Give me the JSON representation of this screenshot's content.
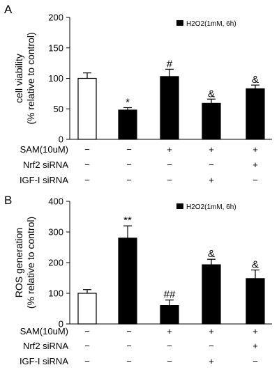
{
  "chart_data": [
    {
      "type": "bar",
      "panel": "A",
      "ylabel_line1": "cell viability",
      "ylabel_line2": "(% relative to control)",
      "ylim": [
        0,
        200
      ],
      "yticks": [
        "0",
        "50",
        "100",
        "150",
        "200"
      ],
      "legend": {
        "label": "H2O2(1mM, 6h)",
        "color": "#000000",
        "position": "top-right"
      },
      "bars": [
        {
          "value": 100,
          "error": 9,
          "fill": "#ffffff",
          "annotation": ""
        },
        {
          "value": 48,
          "error": 4,
          "fill": "#000000",
          "annotation": "*"
        },
        {
          "value": 103,
          "error": 12,
          "fill": "#000000",
          "annotation": "#"
        },
        {
          "value": 59,
          "error": 7,
          "fill": "#000000",
          "annotation": "&"
        },
        {
          "value": 83,
          "error": 6,
          "fill": "#000000",
          "annotation": "&"
        }
      ],
      "conditions": [
        {
          "label": "SAM(10uM)",
          "values": [
            "−",
            "−",
            "+",
            "+",
            "+"
          ]
        },
        {
          "label": "Nrf2 siRNA",
          "values": [
            "−",
            "−",
            "−",
            "−",
            "+"
          ]
        },
        {
          "label": "IGF-I siRNA",
          "values": [
            "−",
            "−",
            "−",
            "+",
            "−"
          ]
        }
      ]
    },
    {
      "type": "bar",
      "panel": "B",
      "ylabel_line1": "ROS generation",
      "ylabel_line2": "(% relative to control)",
      "ylim": [
        0,
        400
      ],
      "yticks": [
        "0",
        "100",
        "200",
        "300",
        "400"
      ],
      "legend": {
        "label": "H2O2(1mM, 6h)",
        "color": "#000000",
        "position": "top-right"
      },
      "bars": [
        {
          "value": 100,
          "error": 12,
          "fill": "#ffffff",
          "annotation": ""
        },
        {
          "value": 280,
          "error": 40,
          "fill": "#000000",
          "annotation": "**"
        },
        {
          "value": 60,
          "error": 18,
          "fill": "#000000",
          "annotation": "##"
        },
        {
          "value": 193,
          "error": 18,
          "fill": "#000000",
          "annotation": "&"
        },
        {
          "value": 148,
          "error": 28,
          "fill": "#000000",
          "annotation": "&"
        }
      ],
      "conditions": [
        {
          "label": "SAM(10uM)",
          "values": [
            "−",
            "−",
            "+",
            "+",
            "+"
          ]
        },
        {
          "label": "Nrf2 siRNA",
          "values": [
            "−",
            "−",
            "−",
            "−",
            "+"
          ]
        },
        {
          "label": "IGF-I siRNA",
          "values": [
            "−",
            "−",
            "−",
            "+",
            "−"
          ]
        }
      ]
    }
  ]
}
